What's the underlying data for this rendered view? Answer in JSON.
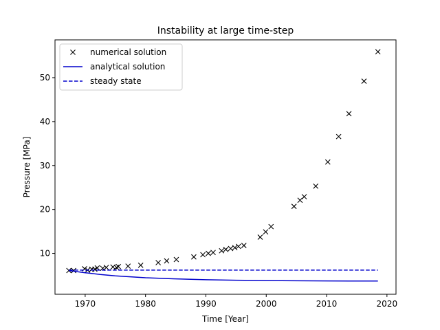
{
  "chart_data": {
    "type": "line",
    "title": "Instability at large time-step",
    "xlabel": "Time [Year]",
    "ylabel": "Pressure [MPa]",
    "xlim": [
      1965,
      2021.5
    ],
    "ylim": [
      0.7,
      58.6
    ],
    "xticks": [
      1970,
      1980,
      1990,
      2000,
      2010,
      2020
    ],
    "yticks": [
      10,
      20,
      30,
      40,
      50
    ],
    "grid": false,
    "legend_position": "upper-left",
    "series": [
      {
        "name": "numerical solution",
        "style": "markers-x",
        "color": "#000000",
        "x": [
          1967.3,
          1968.1,
          1969.9,
          1970.4,
          1971.1,
          1971.6,
          1972.0,
          1972.9,
          1973.5,
          1974.6,
          1975.2,
          1975.5,
          1977.1,
          1979.2,
          1982.1,
          1983.5,
          1985.1,
          1988.0,
          1989.5,
          1990.4,
          1991.2,
          1992.6,
          1993.3,
          1994.1,
          1994.8,
          1995.4,
          1996.3,
          1999.0,
          1999.9,
          2000.8,
          2004.6,
          2005.6,
          2006.3,
          2008.2,
          2010.2,
          2012.0,
          2013.7,
          2016.2,
          2018.5
        ],
        "y": [
          6.1,
          6.1,
          6.5,
          6.2,
          6.4,
          6.4,
          6.7,
          6.6,
          6.8,
          6.9,
          6.8,
          7.0,
          7.1,
          7.3,
          7.9,
          8.3,
          8.6,
          9.2,
          9.7,
          10.0,
          10.2,
          10.6,
          10.9,
          11.1,
          11.3,
          11.6,
          11.8,
          13.7,
          14.9,
          16.1,
          20.7,
          22.1,
          22.9,
          25.3,
          30.8,
          36.6,
          41.8,
          49.2,
          55.9
        ]
      },
      {
        "name": "analytical solution",
        "style": "solid",
        "color": "#0000cc",
        "x": [
          1967.3,
          1970,
          1972.5,
          1975,
          1980,
          1985,
          1990,
          1995,
          2000,
          2005,
          2010,
          2018.5
        ],
        "y": [
          6.1,
          5.6,
          5.2,
          4.9,
          4.45,
          4.2,
          4.0,
          3.9,
          3.82,
          3.76,
          3.73,
          3.7
        ]
      },
      {
        "name": "steady state",
        "style": "dashed",
        "color": "#0000cc",
        "x": [
          1967.3,
          2018.5
        ],
        "y": [
          6.2,
          6.2
        ]
      }
    ]
  }
}
